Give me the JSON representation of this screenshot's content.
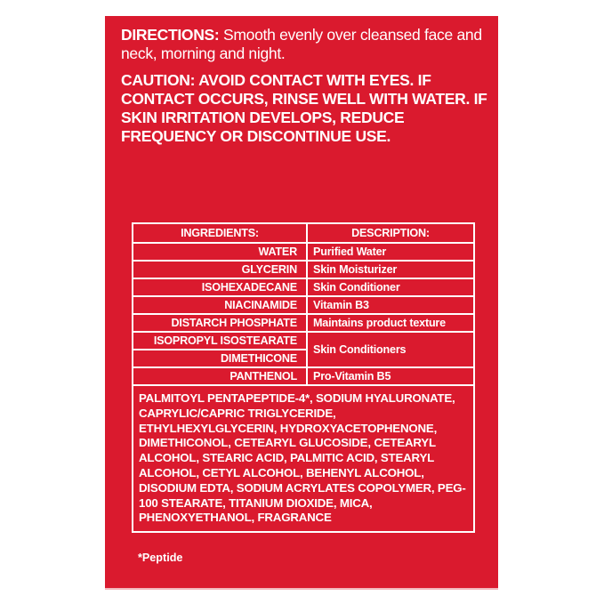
{
  "directions": {
    "label": "DIRECTIONS:",
    "text": " Smooth evenly over cleansed face and neck, morning and night."
  },
  "caution": {
    "label": "CAUTION:",
    "text": " AVOID CONTACT WITH EYES. IF CONTACT OCCURS, RINSE WELL WITH WATER. IF SKIN IRRITATION DEVELOPS, REDUCE FREQUENCY OR DISCONTINUE USE."
  },
  "table": {
    "headers": [
      "INGREDIENTS:",
      "DESCRIPTION:"
    ],
    "rows": [
      {
        "ingredient": "WATER",
        "description": "Purified Water"
      },
      {
        "ingredient": "GLYCERIN",
        "description": "Skin Moisturizer"
      },
      {
        "ingredient": "ISOHEXADECANE",
        "description": "Skin Conditioner"
      },
      {
        "ingredient": "NIACINAMIDE",
        "description": "Vitamin B3"
      },
      {
        "ingredient": "DISTARCH PHOSPHATE",
        "description": "Maintains product texture"
      },
      {
        "ingredient": "ISOPROPYL ISOSTEARATE",
        "description": "Skin Conditioners"
      },
      {
        "ingredient": "DIMETHICONE"
      },
      {
        "ingredient": "PANTHENOL",
        "description": "Pro-Vitamin B5"
      }
    ],
    "other_ingredients": "PALMITOYL PENTAPEPTIDE-4*, SODIUM HYALURONATE, CAPRYLIC/CAPRIC TRIGLYCERIDE, ETHYLHEXYLGLYCERIN, HYDROXYACETOPHENONE, DIMETHICONOL, CETEARYL GLUCOSIDE, CETEARYL ALCOHOL, STEARIC ACID, PALMITIC ACID, STEARYL ALCOHOL, CETYL ALCOHOL, BEHENYL ALCOHOL, DISODIUM EDTA, SODIUM ACRYLATES COPOLYMER, PEG-100 STEARATE, TITANIUM DIOXIDE, MICA, PHENOXYETHANOL, FRAGRANCE"
  },
  "footnote": "*Peptide",
  "colors": {
    "panel": "#da1a2e",
    "text": "#ffffff"
  }
}
